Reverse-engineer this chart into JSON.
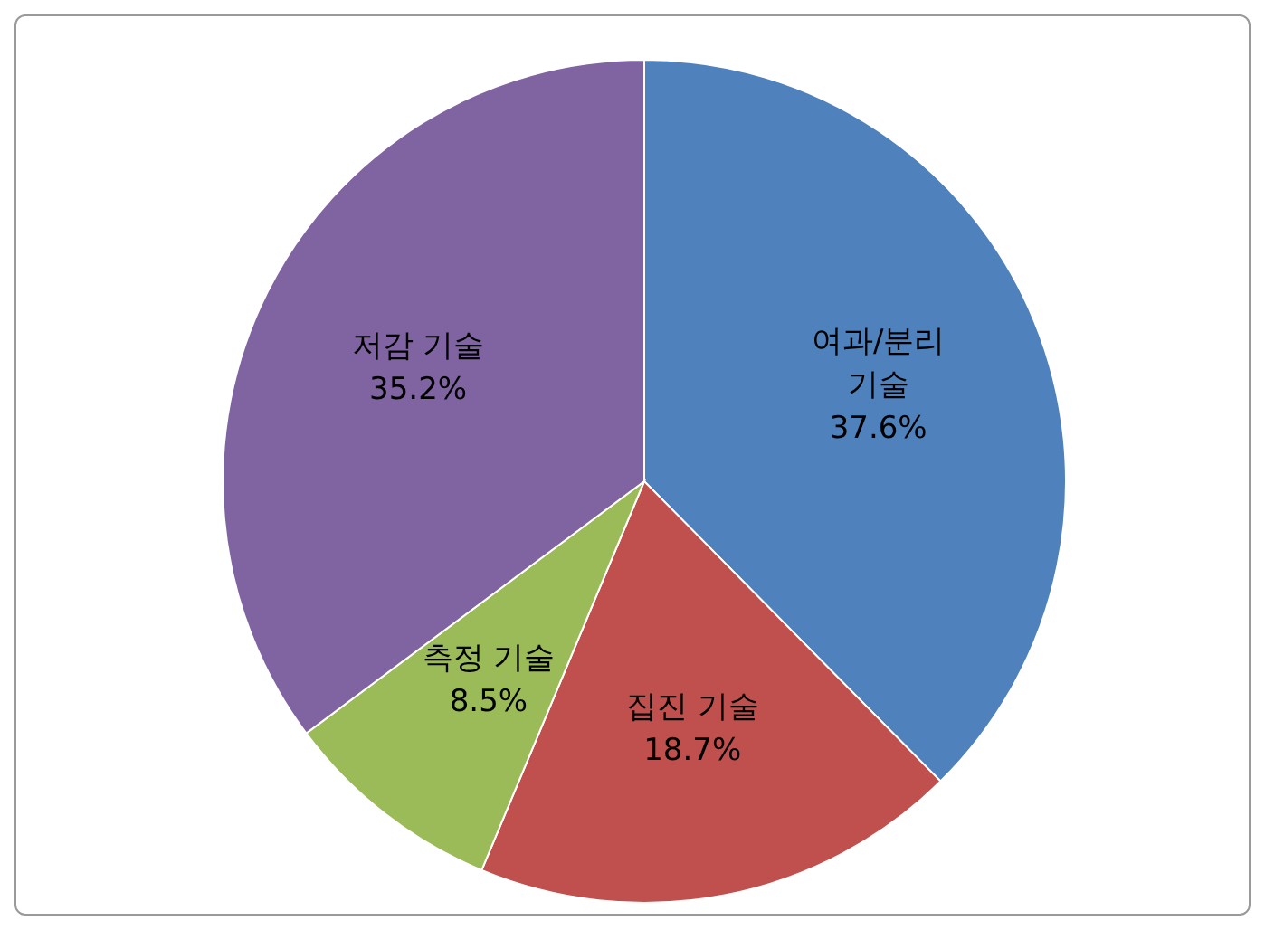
{
  "chart_data": {
    "type": "pie",
    "categories": [
      "여과/분리 기술",
      "집진 기술",
      "측정 기술",
      "저감 기술"
    ],
    "values": [
      37.6,
      18.7,
      8.5,
      35.2
    ],
    "value_labels": [
      "37.6%",
      "18.7%",
      "8.5%",
      "35.2%"
    ],
    "colors": [
      "#4f81bd",
      "#c0504d",
      "#9bbb59",
      "#8064a2"
    ],
    "legend": false
  }
}
